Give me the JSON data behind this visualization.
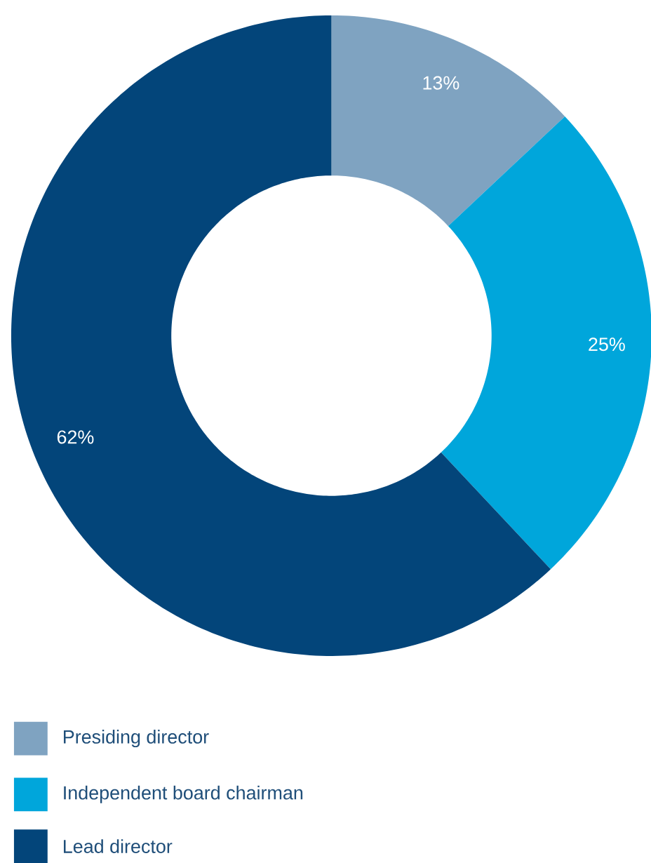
{
  "chart_data": {
    "type": "donut",
    "categories": [
      "Presiding director",
      "Independent board chairman",
      "Lead director"
    ],
    "values": [
      13,
      25,
      62
    ],
    "colors": [
      "#7fa3c1",
      "#00a6db",
      "#03457a"
    ],
    "value_labels": [
      "13%",
      "25%",
      "62%"
    ],
    "legend": "bottom"
  }
}
